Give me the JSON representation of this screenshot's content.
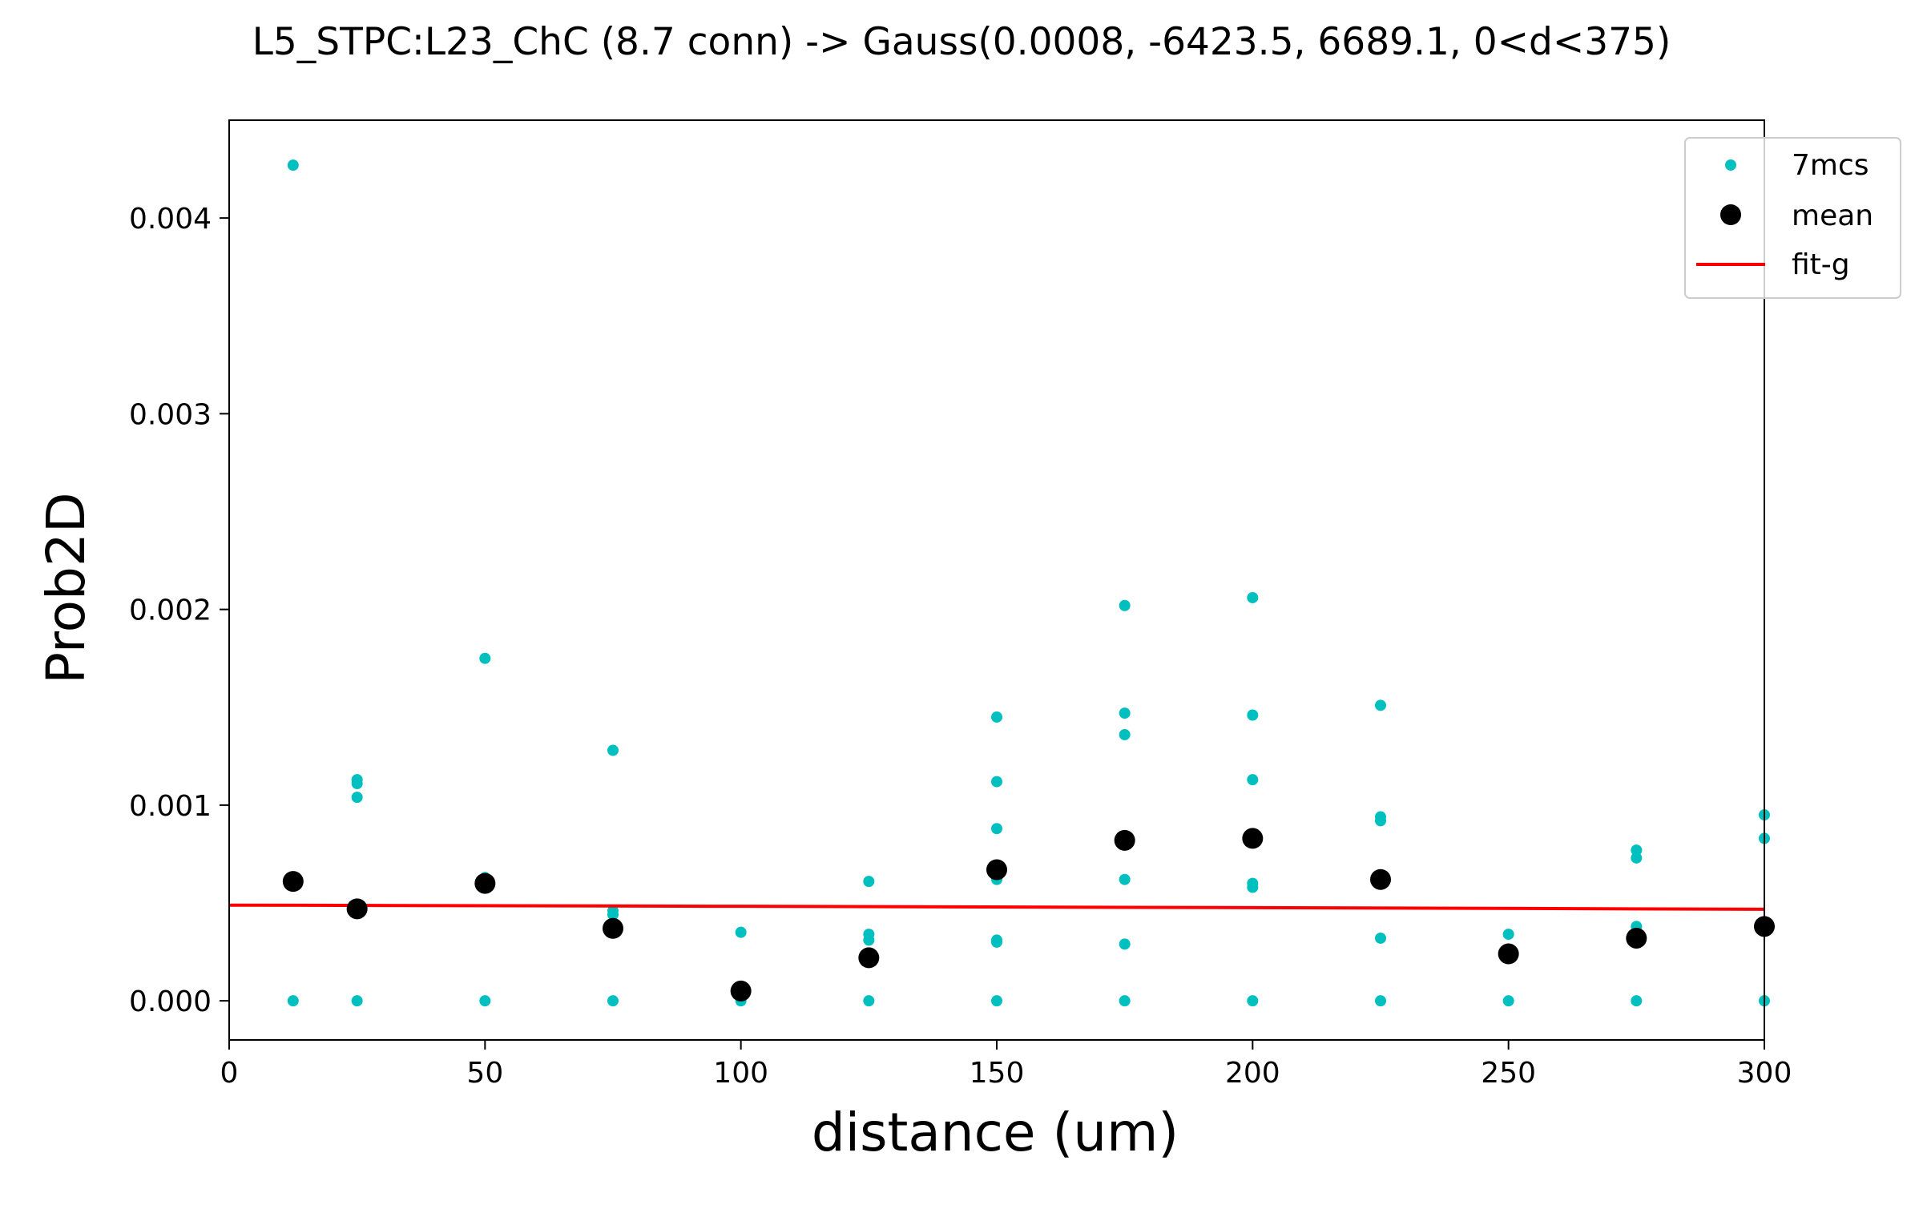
{
  "chart_data": {
    "type": "scatter",
    "title": "L5_STPC:L23_ChC (8.7 conn) -> Gauss(0.0008, -6423.5, 6689.1, 0<d<375)",
    "xlabel": "distance (um)",
    "ylabel": "Prob2D",
    "xlim": [
      0,
      300
    ],
    "ylim": [
      -0.0002,
      0.0045
    ],
    "x_ticks": [
      0,
      50,
      100,
      150,
      200,
      250,
      300
    ],
    "x_tick_labels": [
      "0",
      "50",
      "100",
      "150",
      "200",
      "250",
      "300"
    ],
    "y_ticks": [
      0.0,
      0.001,
      0.002,
      0.003,
      0.004
    ],
    "y_tick_labels": [
      "0.000",
      "0.001",
      "0.002",
      "0.003",
      "0.004"
    ],
    "grid": false,
    "legend_position": "top-right",
    "legend": [
      "7mcs",
      "mean",
      "fit-g"
    ],
    "colors": {
      "samples": "#00bfbf",
      "mean": "#000000",
      "fit": "#ff0000"
    },
    "series": [
      {
        "name": "7mcs",
        "style": "small-dots",
        "points": [
          [
            12.5,
            0.00427
          ],
          [
            12.5,
            0.0
          ],
          [
            25,
            0.00113
          ],
          [
            25,
            0.00111
          ],
          [
            25,
            0.00104
          ],
          [
            25,
            0.0
          ],
          [
            50,
            0.00175
          ],
          [
            50,
            0.00063
          ],
          [
            50,
            0.0
          ],
          [
            75,
            0.00128
          ],
          [
            75,
            0.00046
          ],
          [
            75,
            0.00044
          ],
          [
            75,
            0.0
          ],
          [
            100,
            0.00035
          ],
          [
            100,
            0.0
          ],
          [
            125,
            0.00061
          ],
          [
            125,
            0.00034
          ],
          [
            125,
            0.00031
          ],
          [
            125,
            0.0
          ],
          [
            150,
            0.00145
          ],
          [
            150,
            0.00112
          ],
          [
            150,
            0.00088
          ],
          [
            150,
            0.00062
          ],
          [
            150,
            0.00031
          ],
          [
            150,
            0.0003
          ],
          [
            150,
            0.0
          ],
          [
            175,
            0.00202
          ],
          [
            175,
            0.00147
          ],
          [
            175,
            0.00136
          ],
          [
            175,
            0.00062
          ],
          [
            175,
            0.00029
          ],
          [
            175,
            0.0
          ],
          [
            200,
            0.00206
          ],
          [
            200,
            0.00146
          ],
          [
            200,
            0.00113
          ],
          [
            200,
            0.0006
          ],
          [
            200,
            0.00058
          ],
          [
            200,
            0.0
          ],
          [
            225,
            0.00151
          ],
          [
            225,
            0.00094
          ],
          [
            225,
            0.00092
          ],
          [
            225,
            0.00032
          ],
          [
            225,
            0.0
          ],
          [
            250,
            0.00034
          ],
          [
            250,
            0.0
          ],
          [
            275,
            0.00077
          ],
          [
            275,
            0.00073
          ],
          [
            275,
            0.00038
          ],
          [
            275,
            0.0
          ],
          [
            300,
            0.00095
          ],
          [
            300,
            0.00083
          ],
          [
            300,
            0.0
          ]
        ]
      },
      {
        "name": "mean",
        "style": "large-dots",
        "points": [
          [
            12.5,
            0.00061
          ],
          [
            25,
            0.00047
          ],
          [
            50,
            0.0006
          ],
          [
            75,
            0.00037
          ],
          [
            100,
            5e-05
          ],
          [
            125,
            0.00022
          ],
          [
            150,
            0.00067
          ],
          [
            175,
            0.00082
          ],
          [
            200,
            0.00083
          ],
          [
            225,
            0.00062
          ],
          [
            250,
            0.00024
          ],
          [
            275,
            0.00032
          ],
          [
            300,
            0.00038
          ]
        ]
      },
      {
        "name": "fit-g",
        "style": "line",
        "points": [
          [
            0,
            0.000489
          ],
          [
            100,
            0.000483
          ],
          [
            200,
            0.000476
          ],
          [
            300,
            0.000468
          ]
        ]
      }
    ]
  }
}
